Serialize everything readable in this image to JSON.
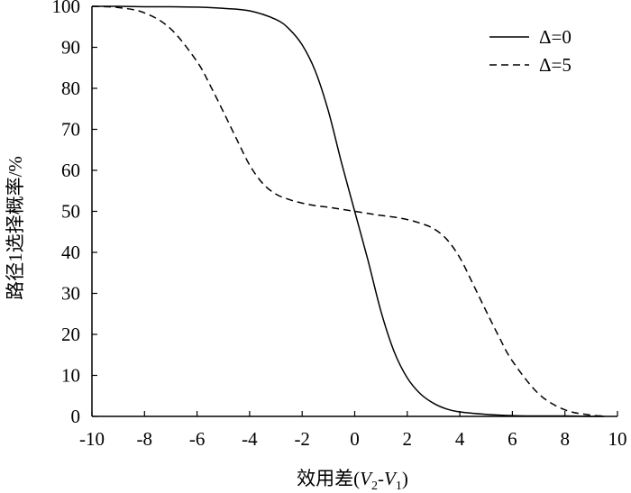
{
  "chart_data": {
    "type": "line",
    "xlabel_prefix": "效用差(",
    "xlabel_var1": "V",
    "xlabel_sub1": "2",
    "xlabel_dash": "-",
    "xlabel_var2": "V",
    "xlabel_sub2": "1",
    "xlabel_suffix": ")",
    "ylabel": "路径1选择概率/%",
    "xlim": [
      -10,
      10
    ],
    "ylim": [
      0,
      100
    ],
    "x_ticks": [
      "-10",
      "-8",
      "-6",
      "-4",
      "-2",
      "0",
      "2",
      "4",
      "6",
      "8",
      "10"
    ],
    "y_ticks": [
      "0",
      "10",
      "20",
      "30",
      "40",
      "50",
      "60",
      "70",
      "80",
      "90",
      "100"
    ],
    "legend_position": "top-right",
    "grid": false,
    "series": [
      {
        "name": "Δ=0",
        "style": "solid",
        "x": [
          -10,
          -9,
          -8,
          -7,
          -6,
          -5,
          -4,
          -3,
          -2.5,
          -2,
          -1.5,
          -1,
          -0.5,
          0,
          0.5,
          1,
          1.5,
          2,
          2.5,
          3,
          3.5,
          4,
          5,
          6,
          7,
          8,
          9,
          9.5
        ],
        "y": [
          100,
          100,
          99.9,
          99.9,
          99.8,
          99.5,
          98.9,
          96.8,
          94.5,
          90.6,
          84.2,
          74.4,
          61.8,
          50,
          38.2,
          25.6,
          15.8,
          9.4,
          5.5,
          3.2,
          1.8,
          1.1,
          0.5,
          0.2,
          0.1,
          0.1,
          0,
          0
        ]
      },
      {
        "name": "Δ=5",
        "style": "dashed",
        "x": [
          -10,
          -9,
          -8,
          -7,
          -6,
          -5.5,
          -5,
          -4.5,
          -4,
          -3.5,
          -3,
          -2.5,
          -2,
          -1.5,
          -1,
          -0.5,
          0,
          0.5,
          1,
          1.5,
          2,
          2.5,
          3,
          3.5,
          4,
          4.5,
          5,
          5.5,
          6,
          7,
          8,
          9,
          9.5
        ],
        "y": [
          100,
          99.7,
          98.4,
          94.5,
          86.5,
          80.7,
          74.3,
          67.7,
          61.3,
          56.8,
          54.2,
          52.9,
          52,
          51.4,
          51,
          50.5,
          50,
          49.5,
          49,
          48.6,
          48,
          47.1,
          45.8,
          43.2,
          38.7,
          32.3,
          25.7,
          19.3,
          13.5,
          5.5,
          1.6,
          0.3,
          0.1
        ]
      }
    ]
  }
}
